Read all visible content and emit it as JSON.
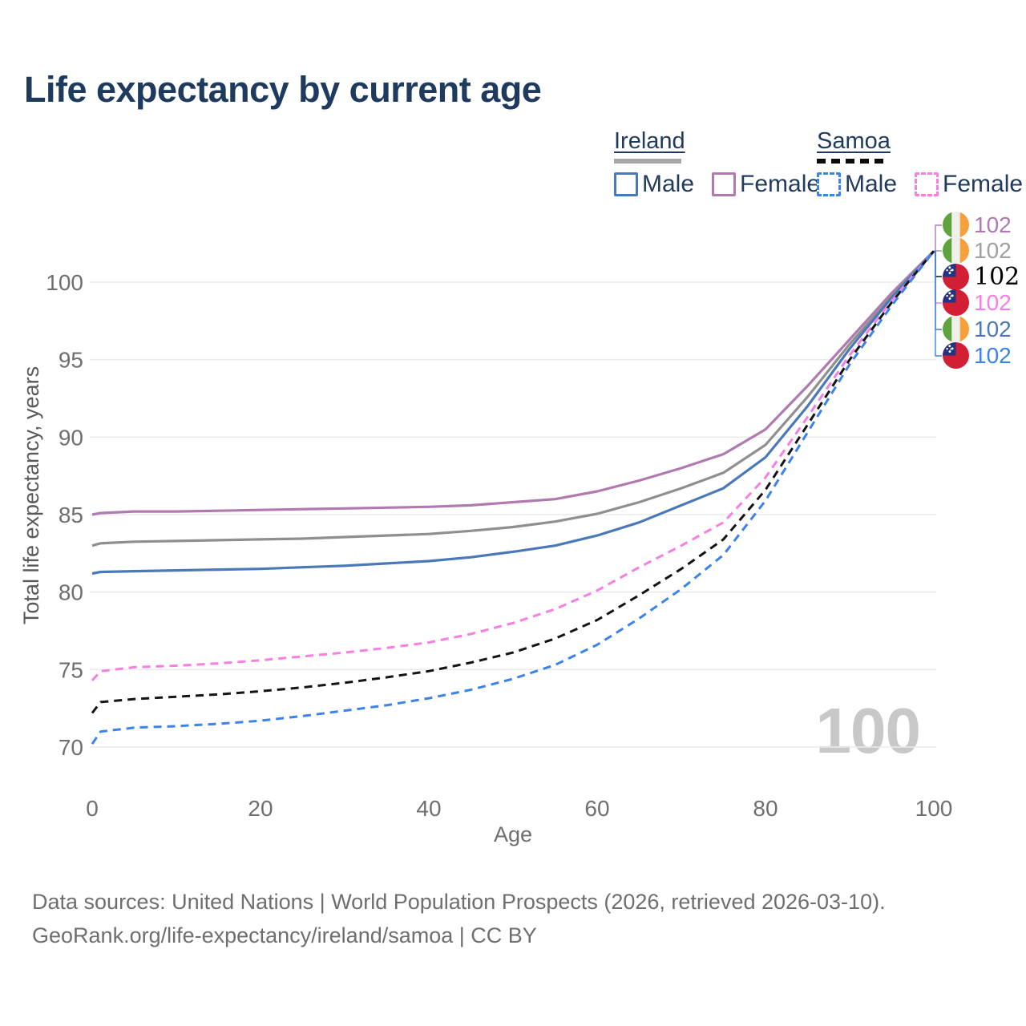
{
  "title": "Life expectancy by current age",
  "legend": {
    "groups": [
      {
        "id": "ireland",
        "label": "Ireland",
        "underline": "solid",
        "items": [
          {
            "id": "ireland-male",
            "label": "Male",
            "color": "#4a79ba",
            "dashed": false
          },
          {
            "id": "ireland-female",
            "label": "Female",
            "color": "#b07ab0",
            "dashed": false
          }
        ]
      },
      {
        "id": "samoa",
        "label": "Samoa",
        "underline": "dashed",
        "items": [
          {
            "id": "samoa-male",
            "label": "Male",
            "color": "#3b82ec",
            "dashed": true
          },
          {
            "id": "samoa-female",
            "label": "Female",
            "color": "#f77ee3",
            "dashed": true
          }
        ]
      }
    ]
  },
  "chart_data": {
    "type": "line",
    "title": "Life expectancy by current age",
    "xlabel": "Age",
    "ylabel": "Total life expectancy, years",
    "x_ticks": [
      0,
      20,
      40,
      60,
      80,
      100
    ],
    "y_ticks": [
      70,
      75,
      80,
      85,
      90,
      95,
      100
    ],
    "xlim": [
      0,
      100
    ],
    "ylim": [
      69,
      103
    ],
    "grid": "horizontal-only",
    "grid_color": "#ebebeb",
    "legend_position": "top-right",
    "series": [
      {
        "name": "Ireland Female",
        "country": "Ireland",
        "sex": "Female",
        "color": "#b07ab0",
        "dashed": false,
        "points": [
          [
            0,
            85.0
          ],
          [
            1,
            85.1
          ],
          [
            5,
            85.2
          ],
          [
            10,
            85.2
          ],
          [
            15,
            85.25
          ],
          [
            20,
            85.3
          ],
          [
            25,
            85.35
          ],
          [
            30,
            85.4
          ],
          [
            35,
            85.45
          ],
          [
            40,
            85.5
          ],
          [
            45,
            85.6
          ],
          [
            50,
            85.8
          ],
          [
            55,
            86.0
          ],
          [
            60,
            86.5
          ],
          [
            65,
            87.2
          ],
          [
            70,
            88.0
          ],
          [
            75,
            88.9
          ],
          [
            80,
            90.5
          ],
          [
            85,
            93.3
          ],
          [
            90,
            96.3
          ],
          [
            95,
            99.3
          ],
          [
            100,
            102
          ]
        ]
      },
      {
        "name": "Ireland Both sexes",
        "country": "Ireland",
        "sex": "Both",
        "color": "#8f8f8f",
        "dashed": false,
        "points": [
          [
            0,
            83.0
          ],
          [
            1,
            83.15
          ],
          [
            5,
            83.25
          ],
          [
            10,
            83.3
          ],
          [
            15,
            83.35
          ],
          [
            20,
            83.4
          ],
          [
            25,
            83.45
          ],
          [
            30,
            83.55
          ],
          [
            35,
            83.65
          ],
          [
            40,
            83.75
          ],
          [
            45,
            83.95
          ],
          [
            50,
            84.2
          ],
          [
            55,
            84.55
          ],
          [
            60,
            85.05
          ],
          [
            65,
            85.8
          ],
          [
            70,
            86.7
          ],
          [
            75,
            87.7
          ],
          [
            80,
            89.5
          ],
          [
            85,
            92.6
          ],
          [
            90,
            96.0
          ],
          [
            95,
            99.1
          ],
          [
            100,
            102
          ]
        ]
      },
      {
        "name": "Ireland Male",
        "country": "Ireland",
        "sex": "Male",
        "color": "#4a79ba",
        "dashed": false,
        "points": [
          [
            0,
            81.2
          ],
          [
            1,
            81.3
          ],
          [
            5,
            81.35
          ],
          [
            10,
            81.4
          ],
          [
            15,
            81.45
          ],
          [
            20,
            81.5
          ],
          [
            25,
            81.6
          ],
          [
            30,
            81.7
          ],
          [
            35,
            81.85
          ],
          [
            40,
            82.0
          ],
          [
            45,
            82.25
          ],
          [
            50,
            82.6
          ],
          [
            55,
            83.0
          ],
          [
            60,
            83.65
          ],
          [
            65,
            84.5
          ],
          [
            70,
            85.6
          ],
          [
            75,
            86.7
          ],
          [
            80,
            88.7
          ],
          [
            85,
            92.0
          ],
          [
            90,
            95.7
          ],
          [
            95,
            99.0
          ],
          [
            100,
            102
          ]
        ]
      },
      {
        "name": "Samoa Female",
        "country": "Samoa",
        "sex": "Female",
        "color": "#f77ee3",
        "dashed": true,
        "points": [
          [
            0,
            74.3
          ],
          [
            1,
            74.9
          ],
          [
            5,
            75.15
          ],
          [
            10,
            75.25
          ],
          [
            15,
            75.4
          ],
          [
            20,
            75.6
          ],
          [
            25,
            75.85
          ],
          [
            30,
            76.1
          ],
          [
            35,
            76.4
          ],
          [
            40,
            76.75
          ],
          [
            45,
            77.3
          ],
          [
            50,
            78.0
          ],
          [
            55,
            78.9
          ],
          [
            60,
            80.1
          ],
          [
            65,
            81.6
          ],
          [
            70,
            83.0
          ],
          [
            75,
            84.5
          ],
          [
            80,
            87.4
          ],
          [
            85,
            91.3
          ],
          [
            90,
            95.3
          ],
          [
            95,
            98.8
          ],
          [
            100,
            102
          ]
        ]
      },
      {
        "name": "Samoa Both sexes",
        "country": "Samoa",
        "sex": "Both",
        "color": "#141414",
        "dashed": true,
        "points": [
          [
            0,
            72.2
          ],
          [
            1,
            72.9
          ],
          [
            5,
            73.1
          ],
          [
            10,
            73.25
          ],
          [
            15,
            73.4
          ],
          [
            20,
            73.6
          ],
          [
            25,
            73.85
          ],
          [
            30,
            74.15
          ],
          [
            35,
            74.5
          ],
          [
            40,
            74.9
          ],
          [
            45,
            75.45
          ],
          [
            50,
            76.1
          ],
          [
            55,
            77.0
          ],
          [
            60,
            78.2
          ],
          [
            65,
            79.8
          ],
          [
            70,
            81.5
          ],
          [
            75,
            83.4
          ],
          [
            80,
            86.6
          ],
          [
            85,
            90.8
          ],
          [
            90,
            95.0
          ],
          [
            95,
            98.7
          ],
          [
            100,
            102
          ]
        ]
      },
      {
        "name": "Samoa Male",
        "country": "Samoa",
        "sex": "Male",
        "color": "#3b82ec",
        "dashed": true,
        "points": [
          [
            0,
            70.2
          ],
          [
            1,
            71.0
          ],
          [
            5,
            71.25
          ],
          [
            10,
            71.35
          ],
          [
            15,
            71.5
          ],
          [
            20,
            71.7
          ],
          [
            25,
            72.0
          ],
          [
            30,
            72.35
          ],
          [
            35,
            72.7
          ],
          [
            40,
            73.15
          ],
          [
            45,
            73.7
          ],
          [
            50,
            74.4
          ],
          [
            55,
            75.3
          ],
          [
            60,
            76.6
          ],
          [
            65,
            78.3
          ],
          [
            70,
            80.2
          ],
          [
            75,
            82.4
          ],
          [
            80,
            85.9
          ],
          [
            85,
            90.3
          ],
          [
            90,
            94.7
          ],
          [
            95,
            98.5
          ],
          [
            100,
            102
          ]
        ]
      }
    ]
  },
  "end_labels": [
    {
      "flag": "ireland",
      "value": "102",
      "color": "#b07ab0",
      "serif": false
    },
    {
      "flag": "ireland",
      "value": "102",
      "color": "#a0a0a0",
      "serif": false
    },
    {
      "flag": "samoa",
      "value": "102",
      "color": "#000000",
      "serif": true
    },
    {
      "flag": "samoa",
      "value": "102",
      "color": "#f77ee3",
      "serif": false
    },
    {
      "flag": "ireland",
      "value": "102",
      "color": "#4a79ba",
      "serif": false
    },
    {
      "flag": "samoa",
      "value": "102",
      "color": "#3b82ec",
      "serif": false
    }
  ],
  "counter": {
    "value": "100"
  },
  "footer": {
    "line1": "Data sources: United Nations | World Population Prospects (2026, retrieved 2026-03-10).",
    "line2": "GeoRank.org/life-expectancy/ireland/samoa | CC BY"
  }
}
